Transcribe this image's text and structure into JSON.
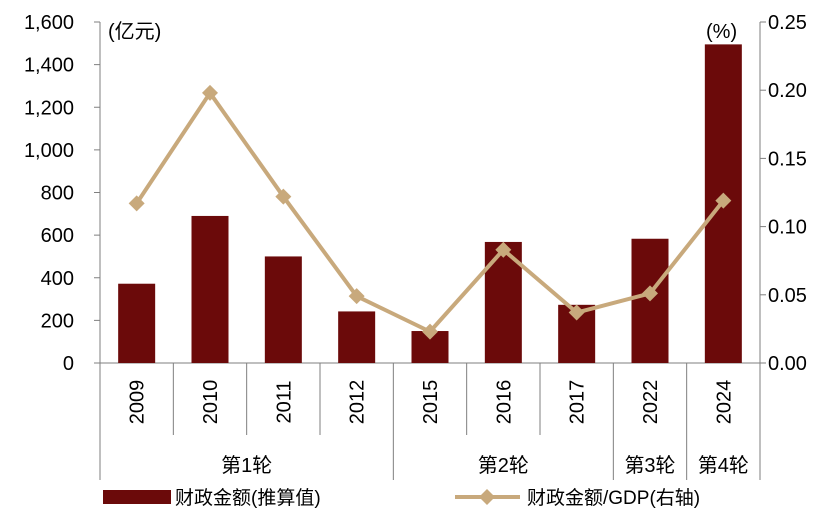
{
  "chart_data": {
    "type": "bar+line",
    "categories": [
      "2009",
      "2010",
      "2011",
      "2012",
      "2015",
      "2016",
      "2017",
      "2022",
      "2024"
    ],
    "groups": [
      {
        "label": "第1轮",
        "span": 4
      },
      {
        "label": "第2轮",
        "span": 3
      },
      {
        "label": "第3轮",
        "span": 1
      },
      {
        "label": "第4轮",
        "span": 1
      }
    ],
    "series": [
      {
        "name": "财政金额(推算值)",
        "type": "bar",
        "axis": "left",
        "color": "#6b0a0a",
        "values": [
          372,
          690,
          500,
          242,
          150,
          568,
          273,
          583,
          1495
        ]
      },
      {
        "name": "财政金额/GDP(右轴)",
        "type": "line",
        "axis": "right",
        "color": "#c8a97c",
        "marker": "diamond",
        "values": [
          0.117,
          0.198,
          0.122,
          0.049,
          0.023,
          0.083,
          0.037,
          0.051,
          0.119
        ]
      }
    ],
    "left_axis": {
      "unit_label": "(亿元)",
      "ylim": [
        0,
        1600
      ],
      "ticks": [
        "0",
        "200",
        "400",
        "600",
        "800",
        "1,000",
        "1,200",
        "1,400",
        "1,600"
      ]
    },
    "right_axis": {
      "unit_label": "(%)",
      "ylim": [
        0,
        0.25
      ],
      "ticks": [
        "0.00",
        "0.05",
        "0.10",
        "0.15",
        "0.20",
        "0.25"
      ]
    },
    "grid": false,
    "legend": "bottom"
  }
}
